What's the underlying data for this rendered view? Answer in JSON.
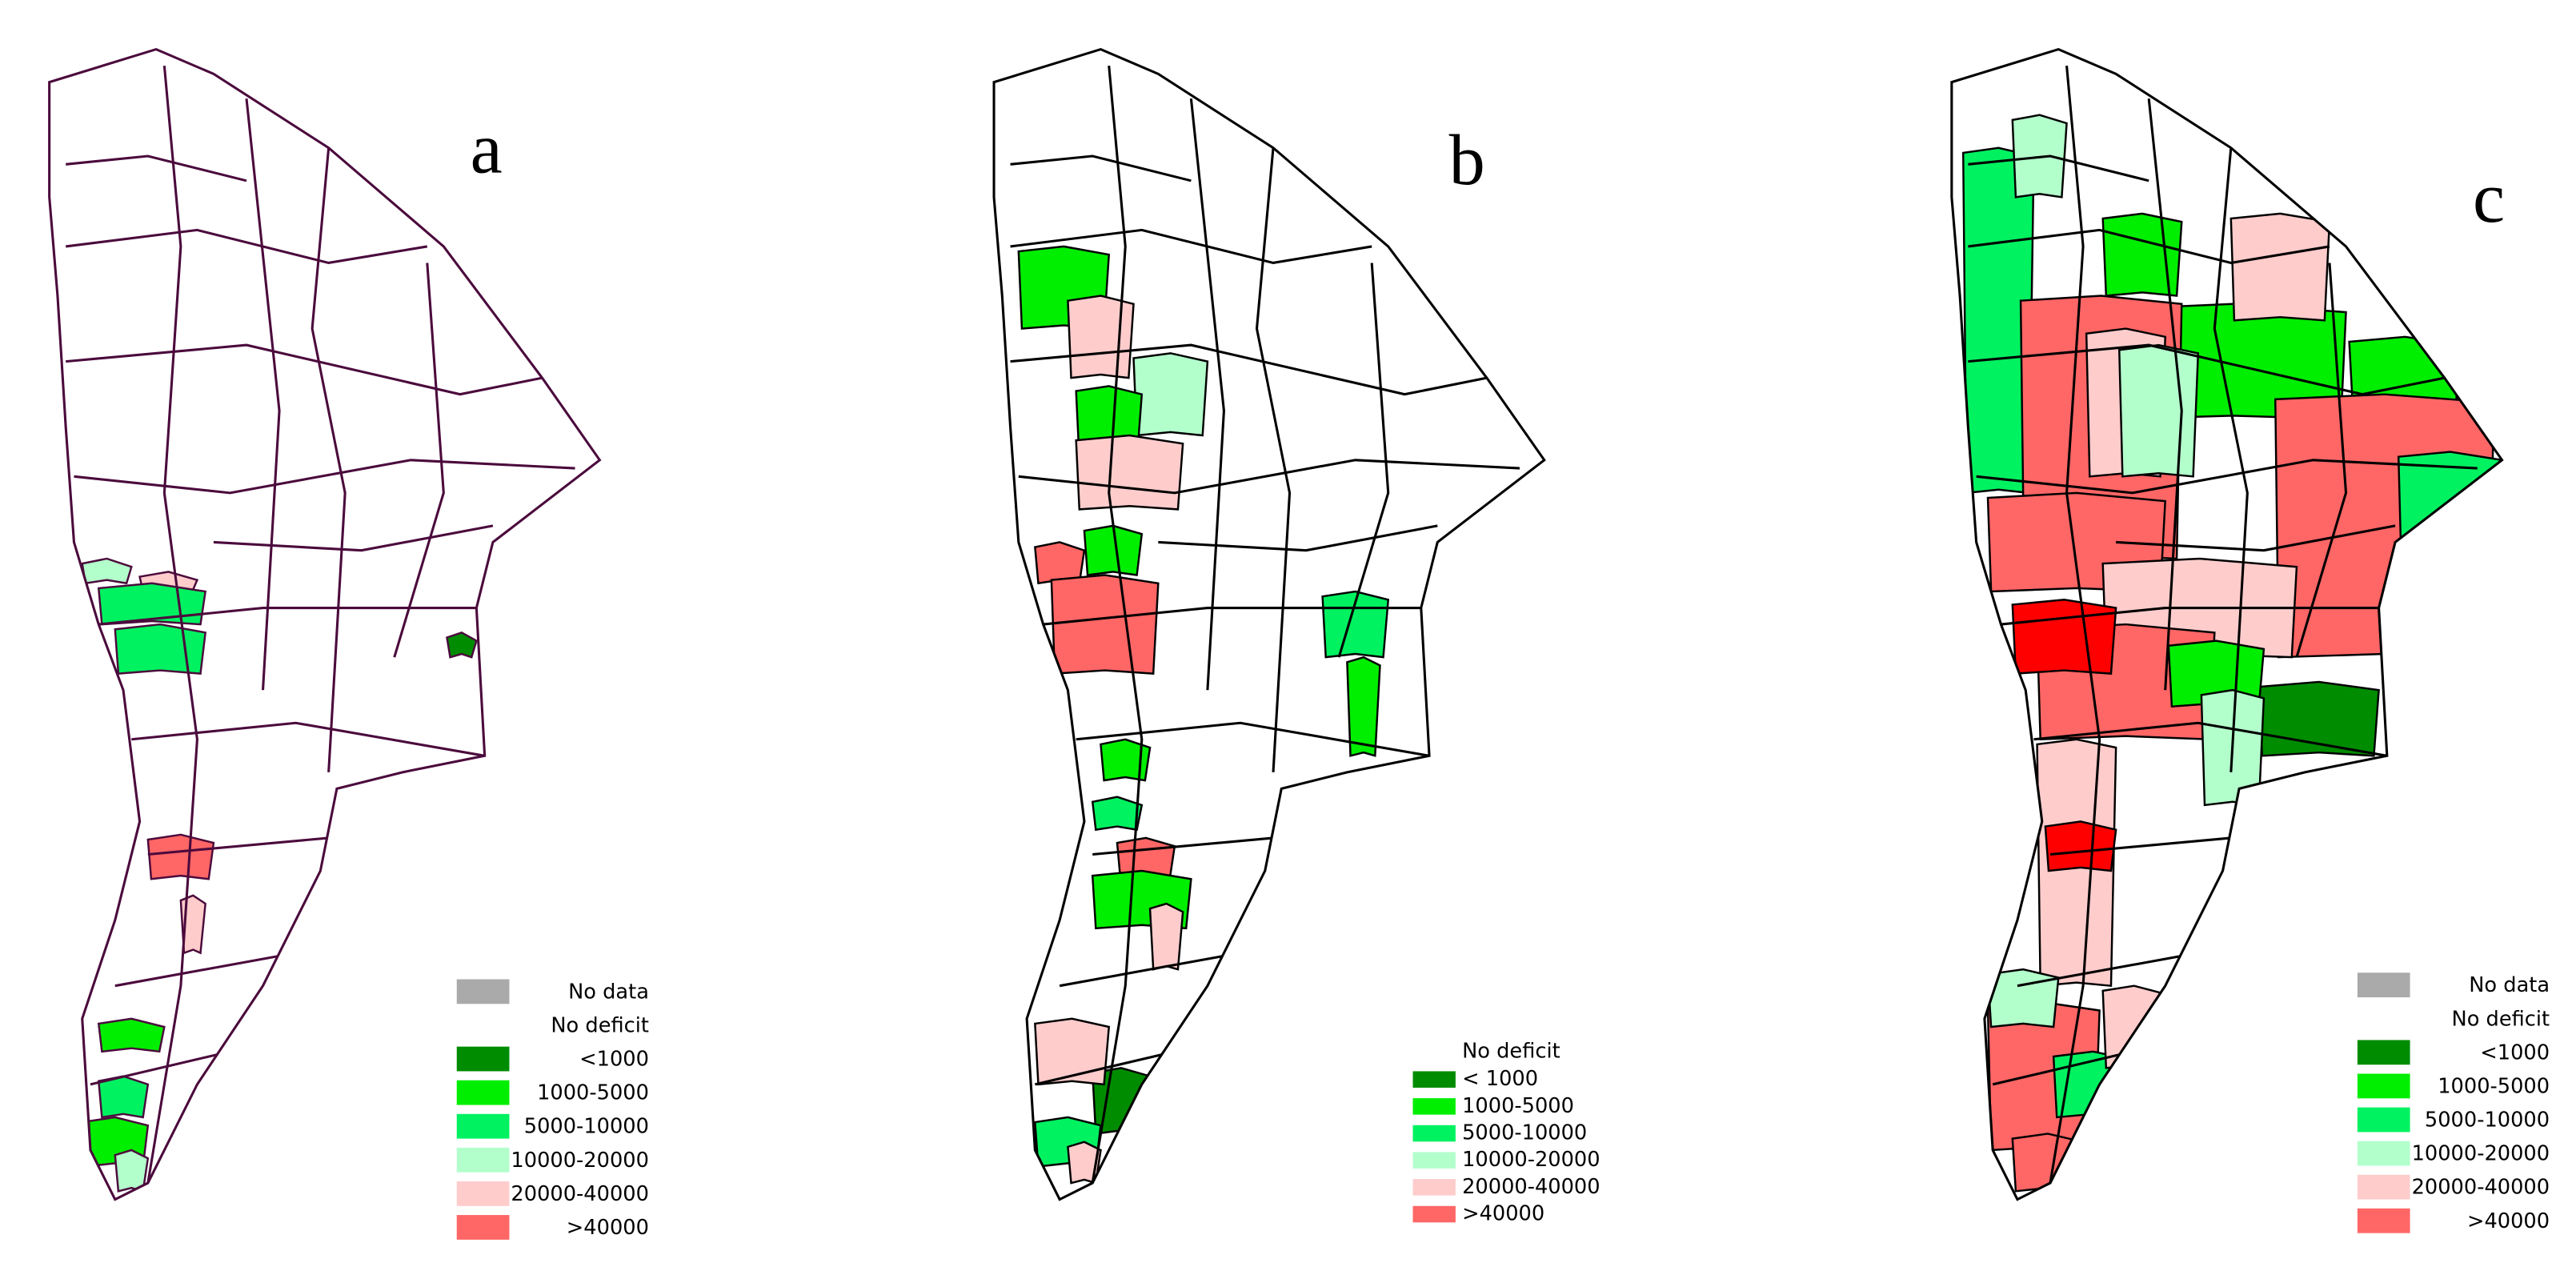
{
  "panels": [
    {
      "label": "a",
      "outline_color": "#4b0a3c",
      "legend": [
        {
          "label": "No data",
          "color": "#aaaaaa"
        },
        {
          "label": "No deficit",
          "color": "#ffffff"
        },
        {
          "label": "<1000",
          "color": "#008c00"
        },
        {
          "label": "1000-5000",
          "color": "#00ee00"
        },
        {
          "label": "5000-10000",
          "color": "#00f260"
        },
        {
          "label": "10000-20000",
          "color": "#b3ffcc"
        },
        {
          "label": "20000-40000",
          "color": "#ffcccc"
        },
        {
          "label": ">40000",
          "color": "#ff6666"
        }
      ]
    },
    {
      "label": "b",
      "outline_color": "#000000",
      "legend_title": "No deficit",
      "legend": [
        {
          "label": "< 1000",
          "color": "#008c00"
        },
        {
          "label": "1000-5000",
          "color": "#00ee00"
        },
        {
          "label": "5000-10000",
          "color": "#00f260"
        },
        {
          "label": "10000-20000",
          "color": "#b3ffcc"
        },
        {
          "label": "20000-40000",
          "color": "#ffcccc"
        },
        {
          "label": ">40000",
          "color": "#ff6666"
        }
      ]
    },
    {
      "label": "c",
      "outline_color": "#000000",
      "legend": [
        {
          "label": "No data",
          "color": "#aaaaaa"
        },
        {
          "label": "No deficit",
          "color": "#ffffff"
        },
        {
          "label": "<1000",
          "color": "#008c00"
        },
        {
          "label": "1000-5000",
          "color": "#00ee00"
        },
        {
          "label": "5000-10000",
          "color": "#00f260"
        },
        {
          "label": "10000-20000",
          "color": "#b3ffcc"
        },
        {
          "label": "20000-40000",
          "color": "#ffcccc"
        },
        {
          "label": ">40000",
          "color": "#ff6666"
        }
      ]
    }
  ]
}
